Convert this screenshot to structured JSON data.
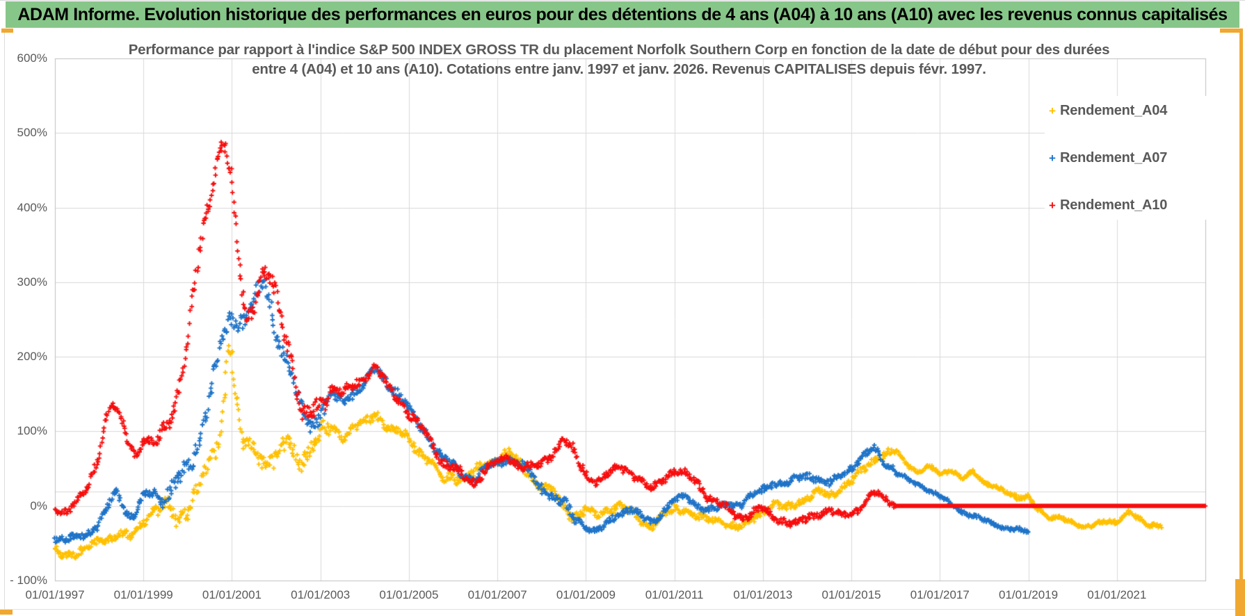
{
  "page": {
    "header_title": "ADAM Informe. Evolution historique des performances en euros pour des détentions de 4 ans (A04) à 10 ans (A10) avec les revenus connus capitalisés"
  },
  "colors": {
    "header_green": "#87C689",
    "accent_orange": "#F0A830",
    "grid": "#D9D9D9",
    "plot_border": "#BFBFBF",
    "axis_text": "#595959",
    "title_text": "#595959",
    "series_a04": "#FFC000",
    "series_a07": "#1E73C8",
    "series_a10": "#F70D0D"
  },
  "chart_data": {
    "type": "scatter",
    "marker": "plus",
    "title_line1": "Performance par rapport à l'indice S&P 500 INDEX GROSS TR  du placement Norfolk Southern Corp en fonction de la date de début pour des durées",
    "title_line2": "entre 4 (A04) et 10 ans (A10).  Cotations entre janv. 1997 et janv. 2026. Revenus CAPITALISES depuis févr. 1997.",
    "xlabel": "",
    "ylabel": "",
    "grid": true,
    "legend_position": "right-top",
    "x_range_years": [
      1997,
      2023
    ],
    "ylim": [
      -100,
      600
    ],
    "y_tick_values": [
      600,
      500,
      400,
      300,
      200,
      100,
      0,
      -100
    ],
    "y_tick_labels": [
      "600%",
      "500%",
      "400%",
      "300%",
      "200%",
      "100%",
      "0%",
      "- 100%"
    ],
    "x_tick_labels": [
      "01/01/1997",
      "01/01/1999",
      "01/01/2001",
      "01/01/2003",
      "01/01/2005",
      "01/01/2007",
      "01/01/2009",
      "01/01/2011",
      "01/01/2013",
      "01/01/2015",
      "01/01/2017",
      "01/01/2019",
      "01/01/2021"
    ],
    "extra_hline_value": 19,
    "noise_eras": [
      [
        1996.9,
        1999.3,
        8
      ],
      [
        1999.3,
        2003.2,
        18
      ],
      [
        2003.2,
        2009.0,
        9
      ],
      [
        2009.0,
        2016.0,
        7
      ],
      [
        2016.0,
        2023.1,
        4
      ]
    ],
    "series": [
      {
        "name": "Rendement_A04",
        "color": "#FFC000",
        "anchors": [
          [
            1997.0,
            -62
          ],
          [
            1997.2,
            -70
          ],
          [
            1997.5,
            -60
          ],
          [
            1997.75,
            -55
          ],
          [
            1998.0,
            -50
          ],
          [
            1998.25,
            -42
          ],
          [
            1998.5,
            -35
          ],
          [
            1998.7,
            -43
          ],
          [
            1999.0,
            -25
          ],
          [
            1999.2,
            -5
          ],
          [
            1999.4,
            8
          ],
          [
            1999.6,
            -10
          ],
          [
            1999.8,
            -22
          ],
          [
            2000.0,
            5
          ],
          [
            2000.2,
            25
          ],
          [
            2000.4,
            45
          ],
          [
            2000.6,
            65
          ],
          [
            2000.75,
            90
          ],
          [
            2000.85,
            160
          ],
          [
            2000.92,
            225
          ],
          [
            2001.0,
            205
          ],
          [
            2001.08,
            150
          ],
          [
            2001.17,
            110
          ],
          [
            2001.25,
            80
          ],
          [
            2001.5,
            72
          ],
          [
            2001.75,
            65
          ],
          [
            2002.0,
            72
          ],
          [
            2002.25,
            85
          ],
          [
            2002.5,
            62
          ],
          [
            2002.75,
            75
          ],
          [
            2003.0,
            90
          ],
          [
            2003.25,
            102
          ],
          [
            2003.5,
            95
          ],
          [
            2003.75,
            105
          ],
          [
            2004.0,
            112
          ],
          [
            2004.25,
            125
          ],
          [
            2004.5,
            108
          ],
          [
            2004.75,
            98
          ],
          [
            2005.0,
            88
          ],
          [
            2005.25,
            72
          ],
          [
            2005.5,
            58
          ],
          [
            2005.75,
            35
          ],
          [
            2006.0,
            42
          ],
          [
            2006.25,
            38
          ],
          [
            2006.5,
            45
          ],
          [
            2006.75,
            55
          ],
          [
            2007.0,
            62
          ],
          [
            2007.25,
            70
          ],
          [
            2007.5,
            58
          ],
          [
            2007.75,
            42
          ],
          [
            2008.0,
            28
          ],
          [
            2008.25,
            18
          ],
          [
            2008.5,
            -2
          ],
          [
            2008.75,
            -15
          ],
          [
            2009.0,
            -8
          ],
          [
            2009.25,
            -14
          ],
          [
            2009.5,
            -4
          ],
          [
            2009.75,
            2
          ],
          [
            2010.0,
            -8
          ],
          [
            2010.25,
            -18
          ],
          [
            2010.5,
            -26
          ],
          [
            2010.75,
            -14
          ],
          [
            2011.0,
            -6
          ],
          [
            2011.25,
            -4
          ],
          [
            2011.5,
            -14
          ],
          [
            2011.75,
            -20
          ],
          [
            2012.0,
            -16
          ],
          [
            2012.25,
            -24
          ],
          [
            2012.5,
            -30
          ],
          [
            2012.75,
            -18
          ],
          [
            2013.0,
            -8
          ],
          [
            2013.25,
            2
          ],
          [
            2013.5,
            -6
          ],
          [
            2013.75,
            6
          ],
          [
            2014.0,
            12
          ],
          [
            2014.25,
            20
          ],
          [
            2014.5,
            14
          ],
          [
            2014.75,
            24
          ],
          [
            2015.0,
            32
          ],
          [
            2015.25,
            46
          ],
          [
            2015.5,
            62
          ],
          [
            2015.75,
            70
          ],
          [
            2016.0,
            74
          ],
          [
            2016.25,
            58
          ],
          [
            2016.5,
            46
          ],
          [
            2016.75,
            52
          ],
          [
            2017.0,
            42
          ],
          [
            2017.25,
            48
          ],
          [
            2017.5,
            38
          ],
          [
            2017.75,
            44
          ],
          [
            2018.0,
            32
          ],
          [
            2018.25,
            28
          ],
          [
            2018.5,
            18
          ],
          [
            2018.75,
            10
          ],
          [
            2019.0,
            14
          ],
          [
            2019.25,
            -8
          ],
          [
            2019.5,
            -18
          ],
          [
            2019.75,
            -14
          ],
          [
            2020.0,
            -20
          ],
          [
            2020.25,
            -32
          ],
          [
            2020.5,
            -24
          ],
          [
            2020.75,
            -18
          ],
          [
            2021.0,
            -24
          ],
          [
            2021.25,
            -10
          ],
          [
            2021.5,
            -16
          ],
          [
            2021.75,
            -26
          ],
          [
            2022.0,
            -28
          ]
        ]
      },
      {
        "name": "Rendement_A07",
        "color": "#1E73C8",
        "anchors": [
          [
            1997.0,
            -45
          ],
          [
            1997.25,
            -50
          ],
          [
            1997.5,
            -42
          ],
          [
            1997.75,
            -35
          ],
          [
            1998.0,
            -25
          ],
          [
            1998.2,
            0
          ],
          [
            1998.4,
            25
          ],
          [
            1998.6,
            -5
          ],
          [
            1998.75,
            -15
          ],
          [
            1999.0,
            10
          ],
          [
            1999.25,
            20
          ],
          [
            1999.4,
            5
          ],
          [
            1999.5,
            15
          ],
          [
            1999.75,
            30
          ],
          [
            2000.0,
            50
          ],
          [
            2000.25,
            90
          ],
          [
            2000.5,
            150
          ],
          [
            2000.75,
            215
          ],
          [
            2001.0,
            255
          ],
          [
            2001.25,
            245
          ],
          [
            2001.5,
            265
          ],
          [
            2001.75,
            300
          ],
          [
            2002.0,
            235
          ],
          [
            2002.25,
            195
          ],
          [
            2002.5,
            140
          ],
          [
            2002.75,
            110
          ],
          [
            2003.0,
            125
          ],
          [
            2003.25,
            145
          ],
          [
            2003.5,
            138
          ],
          [
            2003.75,
            152
          ],
          [
            2004.0,
            165
          ],
          [
            2004.25,
            185
          ],
          [
            2004.5,
            168
          ],
          [
            2004.75,
            152
          ],
          [
            2005.0,
            128
          ],
          [
            2005.25,
            108
          ],
          [
            2005.5,
            88
          ],
          [
            2005.75,
            62
          ],
          [
            2006.0,
            52
          ],
          [
            2006.25,
            42
          ],
          [
            2006.5,
            38
          ],
          [
            2006.75,
            52
          ],
          [
            2007.0,
            58
          ],
          [
            2007.25,
            64
          ],
          [
            2007.5,
            52
          ],
          [
            2007.75,
            42
          ],
          [
            2008.0,
            25
          ],
          [
            2008.25,
            10
          ],
          [
            2008.5,
            5
          ],
          [
            2008.75,
            -15
          ],
          [
            2009.0,
            -25
          ],
          [
            2009.25,
            -38
          ],
          [
            2009.5,
            -22
          ],
          [
            2009.75,
            -10
          ],
          [
            2010.0,
            -4
          ],
          [
            2010.25,
            -14
          ],
          [
            2010.5,
            -20
          ],
          [
            2010.75,
            -6
          ],
          [
            2011.0,
            6
          ],
          [
            2011.25,
            12
          ],
          [
            2011.5,
            2
          ],
          [
            2011.75,
            -8
          ],
          [
            2012.0,
            -4
          ],
          [
            2012.25,
            6
          ],
          [
            2012.5,
            2
          ],
          [
            2012.75,
            12
          ],
          [
            2013.0,
            22
          ],
          [
            2013.25,
            32
          ],
          [
            2013.5,
            26
          ],
          [
            2013.75,
            36
          ],
          [
            2014.0,
            42
          ],
          [
            2014.25,
            36
          ],
          [
            2014.5,
            30
          ],
          [
            2014.75,
            42
          ],
          [
            2015.0,
            52
          ],
          [
            2015.25,
            62
          ],
          [
            2015.5,
            78
          ],
          [
            2015.75,
            58
          ],
          [
            2016.0,
            45
          ],
          [
            2016.25,
            36
          ],
          [
            2016.5,
            30
          ],
          [
            2016.75,
            22
          ],
          [
            2017.0,
            12
          ],
          [
            2017.25,
            2
          ],
          [
            2017.5,
            -8
          ],
          [
            2017.75,
            -14
          ],
          [
            2018.0,
            -20
          ],
          [
            2018.25,
            -24
          ],
          [
            2018.5,
            -30
          ],
          [
            2018.75,
            -32
          ],
          [
            2019.0,
            -35
          ]
        ]
      },
      {
        "name": "Rendement_A10",
        "color": "#F70D0D",
        "flat_zero_from": 2016.0,
        "flat_zero_to": 2023.0,
        "anchors": [
          [
            1997.0,
            -2
          ],
          [
            1997.25,
            -8
          ],
          [
            1997.5,
            3
          ],
          [
            1997.75,
            25
          ],
          [
            1998.0,
            70
          ],
          [
            1998.17,
            120
          ],
          [
            1998.33,
            135
          ],
          [
            1998.5,
            115
          ],
          [
            1998.67,
            90
          ],
          [
            1998.83,
            70
          ],
          [
            1999.0,
            90
          ],
          [
            1999.25,
            80
          ],
          [
            1999.5,
            105
          ],
          [
            1999.75,
            140
          ],
          [
            2000.0,
            210
          ],
          [
            2000.25,
            340
          ],
          [
            2000.5,
            420
          ],
          [
            2000.67,
            470
          ],
          [
            2000.83,
            490
          ],
          [
            2001.0,
            430
          ],
          [
            2001.17,
            330
          ],
          [
            2001.33,
            250
          ],
          [
            2001.5,
            270
          ],
          [
            2001.75,
            310
          ],
          [
            2002.0,
            280
          ],
          [
            2002.17,
            240
          ],
          [
            2002.33,
            200
          ],
          [
            2002.5,
            150
          ],
          [
            2002.6,
            115
          ],
          [
            2002.75,
            125
          ],
          [
            2003.0,
            142
          ],
          [
            2003.25,
            158
          ],
          [
            2003.5,
            148
          ],
          [
            2003.75,
            162
          ],
          [
            2004.0,
            172
          ],
          [
            2004.25,
            185
          ],
          [
            2004.5,
            162
          ],
          [
            2004.75,
            148
          ],
          [
            2005.0,
            125
          ],
          [
            2005.25,
            105
          ],
          [
            2005.5,
            88
          ],
          [
            2005.75,
            58
          ],
          [
            2006.0,
            48
          ],
          [
            2006.25,
            38
          ],
          [
            2006.5,
            32
          ],
          [
            2006.75,
            52
          ],
          [
            2007.0,
            58
          ],
          [
            2007.25,
            68
          ],
          [
            2007.5,
            55
          ],
          [
            2007.75,
            48
          ],
          [
            2008.0,
            55
          ],
          [
            2008.25,
            72
          ],
          [
            2008.5,
            90
          ],
          [
            2008.75,
            70
          ],
          [
            2009.0,
            45
          ],
          [
            2009.25,
            32
          ],
          [
            2009.5,
            42
          ],
          [
            2009.75,
            52
          ],
          [
            2010.0,
            45
          ],
          [
            2010.25,
            32
          ],
          [
            2010.5,
            22
          ],
          [
            2010.75,
            38
          ],
          [
            2011.0,
            48
          ],
          [
            2011.25,
            42
          ],
          [
            2011.5,
            32
          ],
          [
            2011.75,
            12
          ],
          [
            2012.0,
            2
          ],
          [
            2012.25,
            -8
          ],
          [
            2012.5,
            -16
          ],
          [
            2012.75,
            -8
          ],
          [
            2013.0,
            -4
          ],
          [
            2013.25,
            -14
          ],
          [
            2013.5,
            -20
          ],
          [
            2013.75,
            -26
          ],
          [
            2014.0,
            -18
          ],
          [
            2014.25,
            -10
          ],
          [
            2014.5,
            -6
          ],
          [
            2014.75,
            -14
          ],
          [
            2015.0,
            -8
          ],
          [
            2015.25,
            2
          ],
          [
            2015.5,
            18
          ],
          [
            2015.75,
            8
          ],
          [
            2016.0,
            0
          ]
        ]
      }
    ]
  }
}
